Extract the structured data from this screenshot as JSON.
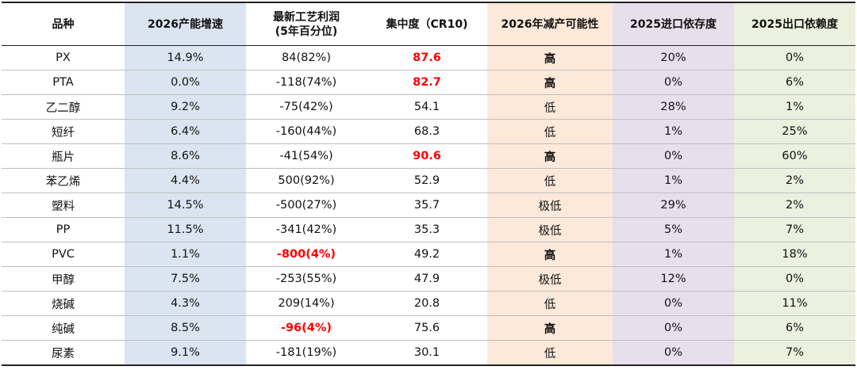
{
  "headers": {
    "variety": "品种",
    "capacity_growth": "2026产能增速",
    "profit_line1": "最新工艺利润",
    "profit_line2": "(5年百分位)",
    "concentration": "集中度（CR10)",
    "cut_likelihood": "2026年减产可能性",
    "import_dependence": "2025进口依存度",
    "export_dependence": "2025出口依赖度"
  },
  "highlight_colors": {
    "capacity_col": "#dbe5f1",
    "cut_col": "#fde9d9",
    "import_col": "#e6e0ec",
    "export_col": "#ebf1de",
    "emphasis_text": "#ff0000"
  },
  "rows": [
    {
      "variety": "PX",
      "growth": "14.9%",
      "profit": "84(82%)",
      "profit_red": false,
      "cr10": "87.6",
      "cr10_red": true,
      "cut": "高",
      "cut_bold": true,
      "import": "20%",
      "export": "0%"
    },
    {
      "variety": "PTA",
      "growth": "0.0%",
      "profit": "-118(74%)",
      "profit_red": false,
      "cr10": "82.7",
      "cr10_red": true,
      "cut": "高",
      "cut_bold": true,
      "import": "0%",
      "export": "6%"
    },
    {
      "variety": "乙二醇",
      "growth": "9.2%",
      "profit": "-75(42%)",
      "profit_red": false,
      "cr10": "54.1",
      "cr10_red": false,
      "cut": "低",
      "cut_bold": false,
      "import": "28%",
      "export": "1%"
    },
    {
      "variety": "短纤",
      "growth": "6.4%",
      "profit": "-160(44%)",
      "profit_red": false,
      "cr10": "68.3",
      "cr10_red": false,
      "cut": "低",
      "cut_bold": false,
      "import": "1%",
      "export": "25%"
    },
    {
      "variety": "瓶片",
      "growth": "8.6%",
      "profit": "-41(54%)",
      "profit_red": false,
      "cr10": "90.6",
      "cr10_red": true,
      "cut": "高",
      "cut_bold": true,
      "import": "0%",
      "export": "60%"
    },
    {
      "variety": "苯乙烯",
      "growth": "4.4%",
      "profit": "500(92%)",
      "profit_red": false,
      "cr10": "52.9",
      "cr10_red": false,
      "cut": "低",
      "cut_bold": false,
      "import": "1%",
      "export": "2%"
    },
    {
      "variety": "塑料",
      "growth": "14.5%",
      "profit": "-500(27%)",
      "profit_red": false,
      "cr10": "35.7",
      "cr10_red": false,
      "cut": "极低",
      "cut_bold": false,
      "import": "29%",
      "export": "2%"
    },
    {
      "variety": "PP",
      "growth": "11.5%",
      "profit": "-341(42%)",
      "profit_red": false,
      "cr10": "35.3",
      "cr10_red": false,
      "cut": "极低",
      "cut_bold": false,
      "import": "5%",
      "export": "7%"
    },
    {
      "variety": "PVC",
      "growth": "1.1%",
      "profit": "-800(4%)",
      "profit_red": true,
      "cr10": "49.2",
      "cr10_red": false,
      "cut": "高",
      "cut_bold": true,
      "import": "1%",
      "export": "18%"
    },
    {
      "variety": "甲醇",
      "growth": "7.5%",
      "profit": "-253(55%)",
      "profit_red": false,
      "cr10": "47.9",
      "cr10_red": false,
      "cut": "极低",
      "cut_bold": false,
      "import": "12%",
      "export": "0%"
    },
    {
      "variety": "烧碱",
      "growth": "4.3%",
      "profit": "209(14%)",
      "profit_red": false,
      "cr10": "20.8",
      "cr10_red": false,
      "cut": "低",
      "cut_bold": false,
      "import": "0%",
      "export": "11%"
    },
    {
      "variety": "纯碱",
      "growth": "8.5%",
      "profit": "-96(4%)",
      "profit_red": true,
      "cr10": "75.6",
      "cr10_red": false,
      "cut": "高",
      "cut_bold": true,
      "import": "0%",
      "export": "6%"
    },
    {
      "variety": "尿素",
      "growth": "9.1%",
      "profit": "-181(19%)",
      "profit_red": false,
      "cr10": "30.1",
      "cr10_red": false,
      "cut": "低",
      "cut_bold": false,
      "import": "0%",
      "export": "7%"
    }
  ]
}
